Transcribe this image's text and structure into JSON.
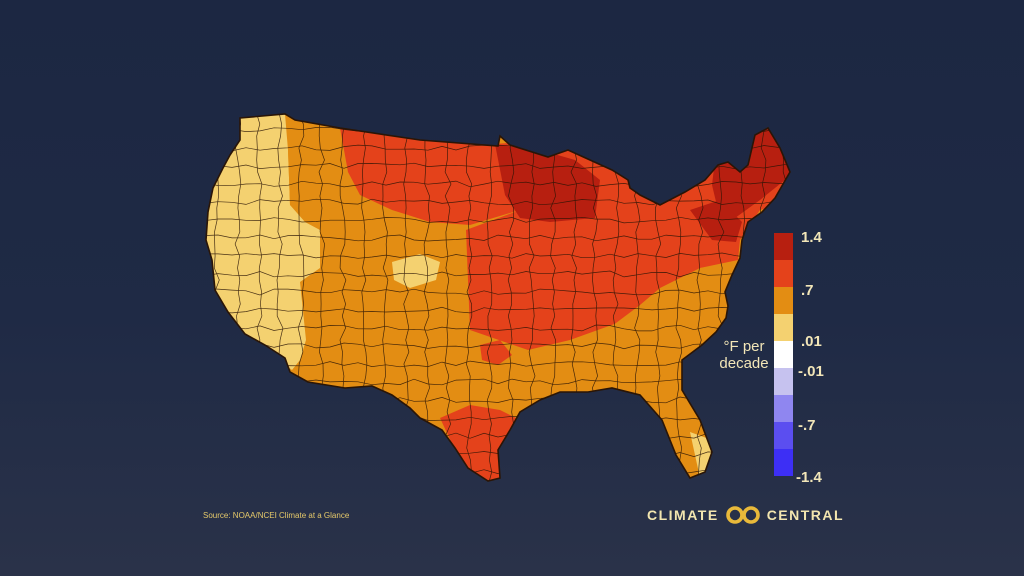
{
  "legend": {
    "tick_labels": [
      "1.4",
      ".7",
      ".01",
      "-.01",
      "-.7",
      "-1.4"
    ],
    "units": "°F per decade",
    "colors": [
      "#b71f10",
      "#e4421b",
      "#e38d13",
      "#f4d170",
      "#ffffff",
      "#c6c2ef",
      "#8f86f0",
      "#5b4ef0",
      "#3d2ff5"
    ]
  },
  "map_colors": {
    "darkred": "#b71f10",
    "red": "#e4421b",
    "orange": "#e38d13",
    "lightorange": "#f0a22e",
    "yellow": "#f4d170",
    "border": "#2a1506",
    "background": "#1c2742"
  },
  "source": "Source: NOAA/NCEI Climate at a Glance",
  "brand": {
    "left": "CLIMATE",
    "right": "CENTRAL",
    "logo_color": "#e9b93a"
  }
}
